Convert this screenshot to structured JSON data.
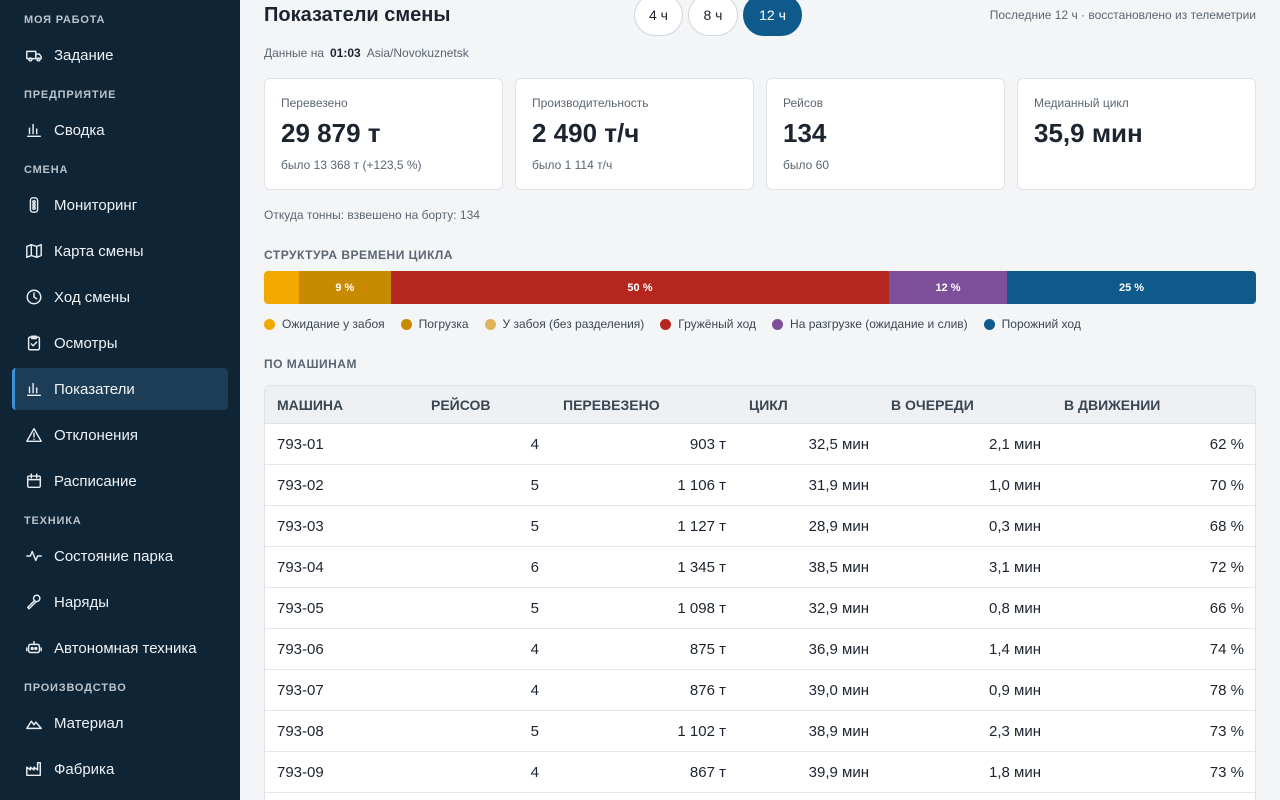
{
  "sidebar": {
    "sections": [
      {
        "title": "МОЯ РАБОТА",
        "items": [
          {
            "label": "Задание",
            "icon": "truck-icon"
          }
        ]
      },
      {
        "title": "ПРЕДПРИЯТИЕ",
        "items": [
          {
            "label": "Сводка",
            "icon": "bar-chart-icon"
          }
        ]
      },
      {
        "title": "СМЕНА",
        "items": [
          {
            "label": "Мониторинг",
            "icon": "traffic-light-icon"
          },
          {
            "label": "Карта смены",
            "icon": "map-icon"
          },
          {
            "label": "Ход смены",
            "icon": "clock-icon"
          },
          {
            "label": "Осмотры",
            "icon": "clipboard-check-icon"
          },
          {
            "label": "Показатели",
            "icon": "bar-chart-icon",
            "active": true
          },
          {
            "label": "Отклонения",
            "icon": "warning-icon"
          },
          {
            "label": "Расписание",
            "icon": "calendar-icon"
          }
        ]
      },
      {
        "title": "ТЕХНИКА",
        "items": [
          {
            "label": "Состояние парка",
            "icon": "pulse-icon"
          },
          {
            "label": "Наряды",
            "icon": "wrench-icon"
          },
          {
            "label": "Автономная техника",
            "icon": "robot-icon"
          }
        ]
      },
      {
        "title": "ПРОИЗВОДСТВО",
        "items": [
          {
            "label": "Материал",
            "icon": "mountain-icon"
          },
          {
            "label": "Фабрика",
            "icon": "factory-icon"
          }
        ]
      }
    ]
  },
  "header": {
    "title": "Показатели смены",
    "ranges": [
      {
        "label": "4 ч"
      },
      {
        "label": "8 ч"
      },
      {
        "label": "12 ч",
        "active": true
      }
    ],
    "status": "Последние 12 ч · восстановлено из телеметрии",
    "asof_prefix": "Данные на",
    "asof_time": "01:03",
    "asof_tz": "Asia/Novokuznetsk"
  },
  "kpis": [
    {
      "label": "Перевезено",
      "value": "29 879 т",
      "prev": "было 13 368 т (+123,5 %)"
    },
    {
      "label": "Производительность",
      "value": "2 490 т/ч",
      "prev": "было 1 114 т/ч"
    },
    {
      "label": "Рейсов",
      "value": "134",
      "prev": "было 60"
    },
    {
      "label": "Медианный цикл",
      "value": "35,9 мин",
      "prev": ""
    }
  ],
  "source_note": "Откуда тонны: взвешено на борту: 134",
  "cycle_structure": {
    "title": "СТРУКТУРА ВРЕМЕНИ ЦИКЛА",
    "segments": [
      {
        "name": "Ожидание у забоя",
        "share": 3.5,
        "label": "",
        "color": "#f2a900"
      },
      {
        "name": "Погрузка",
        "share": 9.3,
        "label": "9 %",
        "color": "#c88a00"
      },
      {
        "name": "У забоя (без разделения)",
        "share": 0,
        "label": "",
        "color": "#e0b45a"
      },
      {
        "name": "Гружёный ход",
        "share": 50.2,
        "label": "50 %",
        "color": "#b5271e"
      },
      {
        "name": "На разгрузке (ожидание и слив)",
        "share": 11.9,
        "label": "12 %",
        "color": "#7d4f9a"
      },
      {
        "name": "Порожний ход",
        "share": 25.1,
        "label": "25 %",
        "color": "#0f5a8c"
      }
    ]
  },
  "machines": {
    "title": "ПО МАШИНАМ",
    "columns": [
      "МАШИНА",
      "РЕЙСОВ",
      "ПЕРЕВЕЗЕНО",
      "ЦИКЛ",
      "В ОЧЕРЕДИ",
      "В ДВИЖЕНИИ"
    ],
    "rows": [
      [
        "793-01",
        "4",
        "903 т",
        "32,5 мин",
        "2,1 мин",
        "62 %"
      ],
      [
        "793-02",
        "5",
        "1 106 т",
        "31,9 мин",
        "1,0 мин",
        "70 %"
      ],
      [
        "793-03",
        "5",
        "1 127 т",
        "28,9 мин",
        "0,3 мин",
        "68 %"
      ],
      [
        "793-04",
        "6",
        "1 345 т",
        "38,5 мин",
        "3,1 мин",
        "72 %"
      ],
      [
        "793-05",
        "5",
        "1 098 т",
        "32,9 мин",
        "0,8 мин",
        "66 %"
      ],
      [
        "793-06",
        "4",
        "875 т",
        "36,9 мин",
        "1,4 мин",
        "74 %"
      ],
      [
        "793-07",
        "4",
        "876 т",
        "39,0 мин",
        "0,9 мин",
        "78 %"
      ],
      [
        "793-08",
        "5",
        "1 102 т",
        "38,9 мин",
        "2,3 мин",
        "73 %"
      ],
      [
        "793-09",
        "4",
        "867 т",
        "39,9 мин",
        "1,8 мин",
        "73 %"
      ]
    ]
  }
}
